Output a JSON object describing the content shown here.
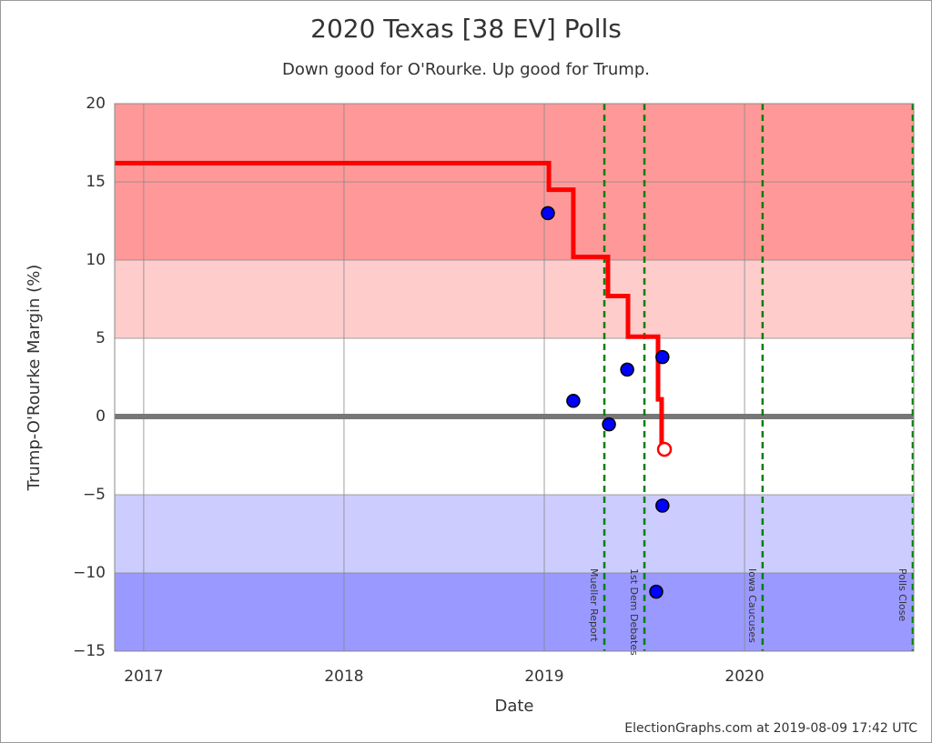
{
  "chart_data": {
    "type": "line",
    "title": "2020 Texas [38 EV] Polls",
    "subtitle": "Down good for O'Rourke. Up good for Trump.",
    "x_label": "Date",
    "y_label": "Trump-O'Rourke Margin (%)",
    "credit": "ElectionGraphs.com at 2019-08-09 17:42 UTC",
    "xlim": [
      2016.855,
      2020.845
    ],
    "xticks": [
      2017,
      2018,
      2019,
      2020
    ],
    "ylim": [
      -15,
      20
    ],
    "yticks": [
      {
        "value": -15,
        "label": "−15"
      },
      {
        "value": -10,
        "label": "−10"
      },
      {
        "value": -5,
        "label": "−5"
      },
      0,
      5,
      10,
      15,
      20
    ],
    "grid": true,
    "bands": [
      {
        "range": [
          10,
          20
        ],
        "color": "#ff9999"
      },
      {
        "range": [
          5,
          10
        ],
        "color": "#ffcccc"
      },
      {
        "range": [
          -10,
          -5
        ],
        "color": "#ccccff"
      },
      {
        "range": [
          -15,
          -10
        ],
        "color": "#9999ff"
      }
    ],
    "series": [
      {
        "type": "line",
        "color": "#ff0000",
        "x": [
          2016.855,
          2019.023,
          2019.023,
          2019.145,
          2019.145,
          2019.318,
          2019.318,
          2019.418,
          2019.418,
          2019.568,
          2019.568,
          2019.586,
          2019.586,
          2019.6
        ],
        "values": [
          16.2,
          16.2,
          14.5,
          14.5,
          10.2,
          10.2,
          7.7,
          7.7,
          5.1,
          5.1,
          1.1,
          1.1,
          -2.1,
          -2.1
        ]
      },
      {
        "type": "scatter",
        "color": "#0000ff",
        "x": [
          2019.018,
          2019.145,
          2019.323,
          2019.414,
          2019.59,
          2019.59,
          2019.559
        ],
        "values": [
          13,
          1,
          -0.5,
          3,
          3.8,
          -5.7,
          -11.2
        ]
      }
    ],
    "events": [
      {
        "label": "Mueller Report",
        "x": 2019.3
      },
      {
        "label": "1st Dem Debates",
        "x": 2019.5
      },
      {
        "label": "Iowa Caucuses",
        "x": 2020.09
      },
      {
        "label": "Polls Close",
        "x": 2020.84
      }
    ]
  }
}
